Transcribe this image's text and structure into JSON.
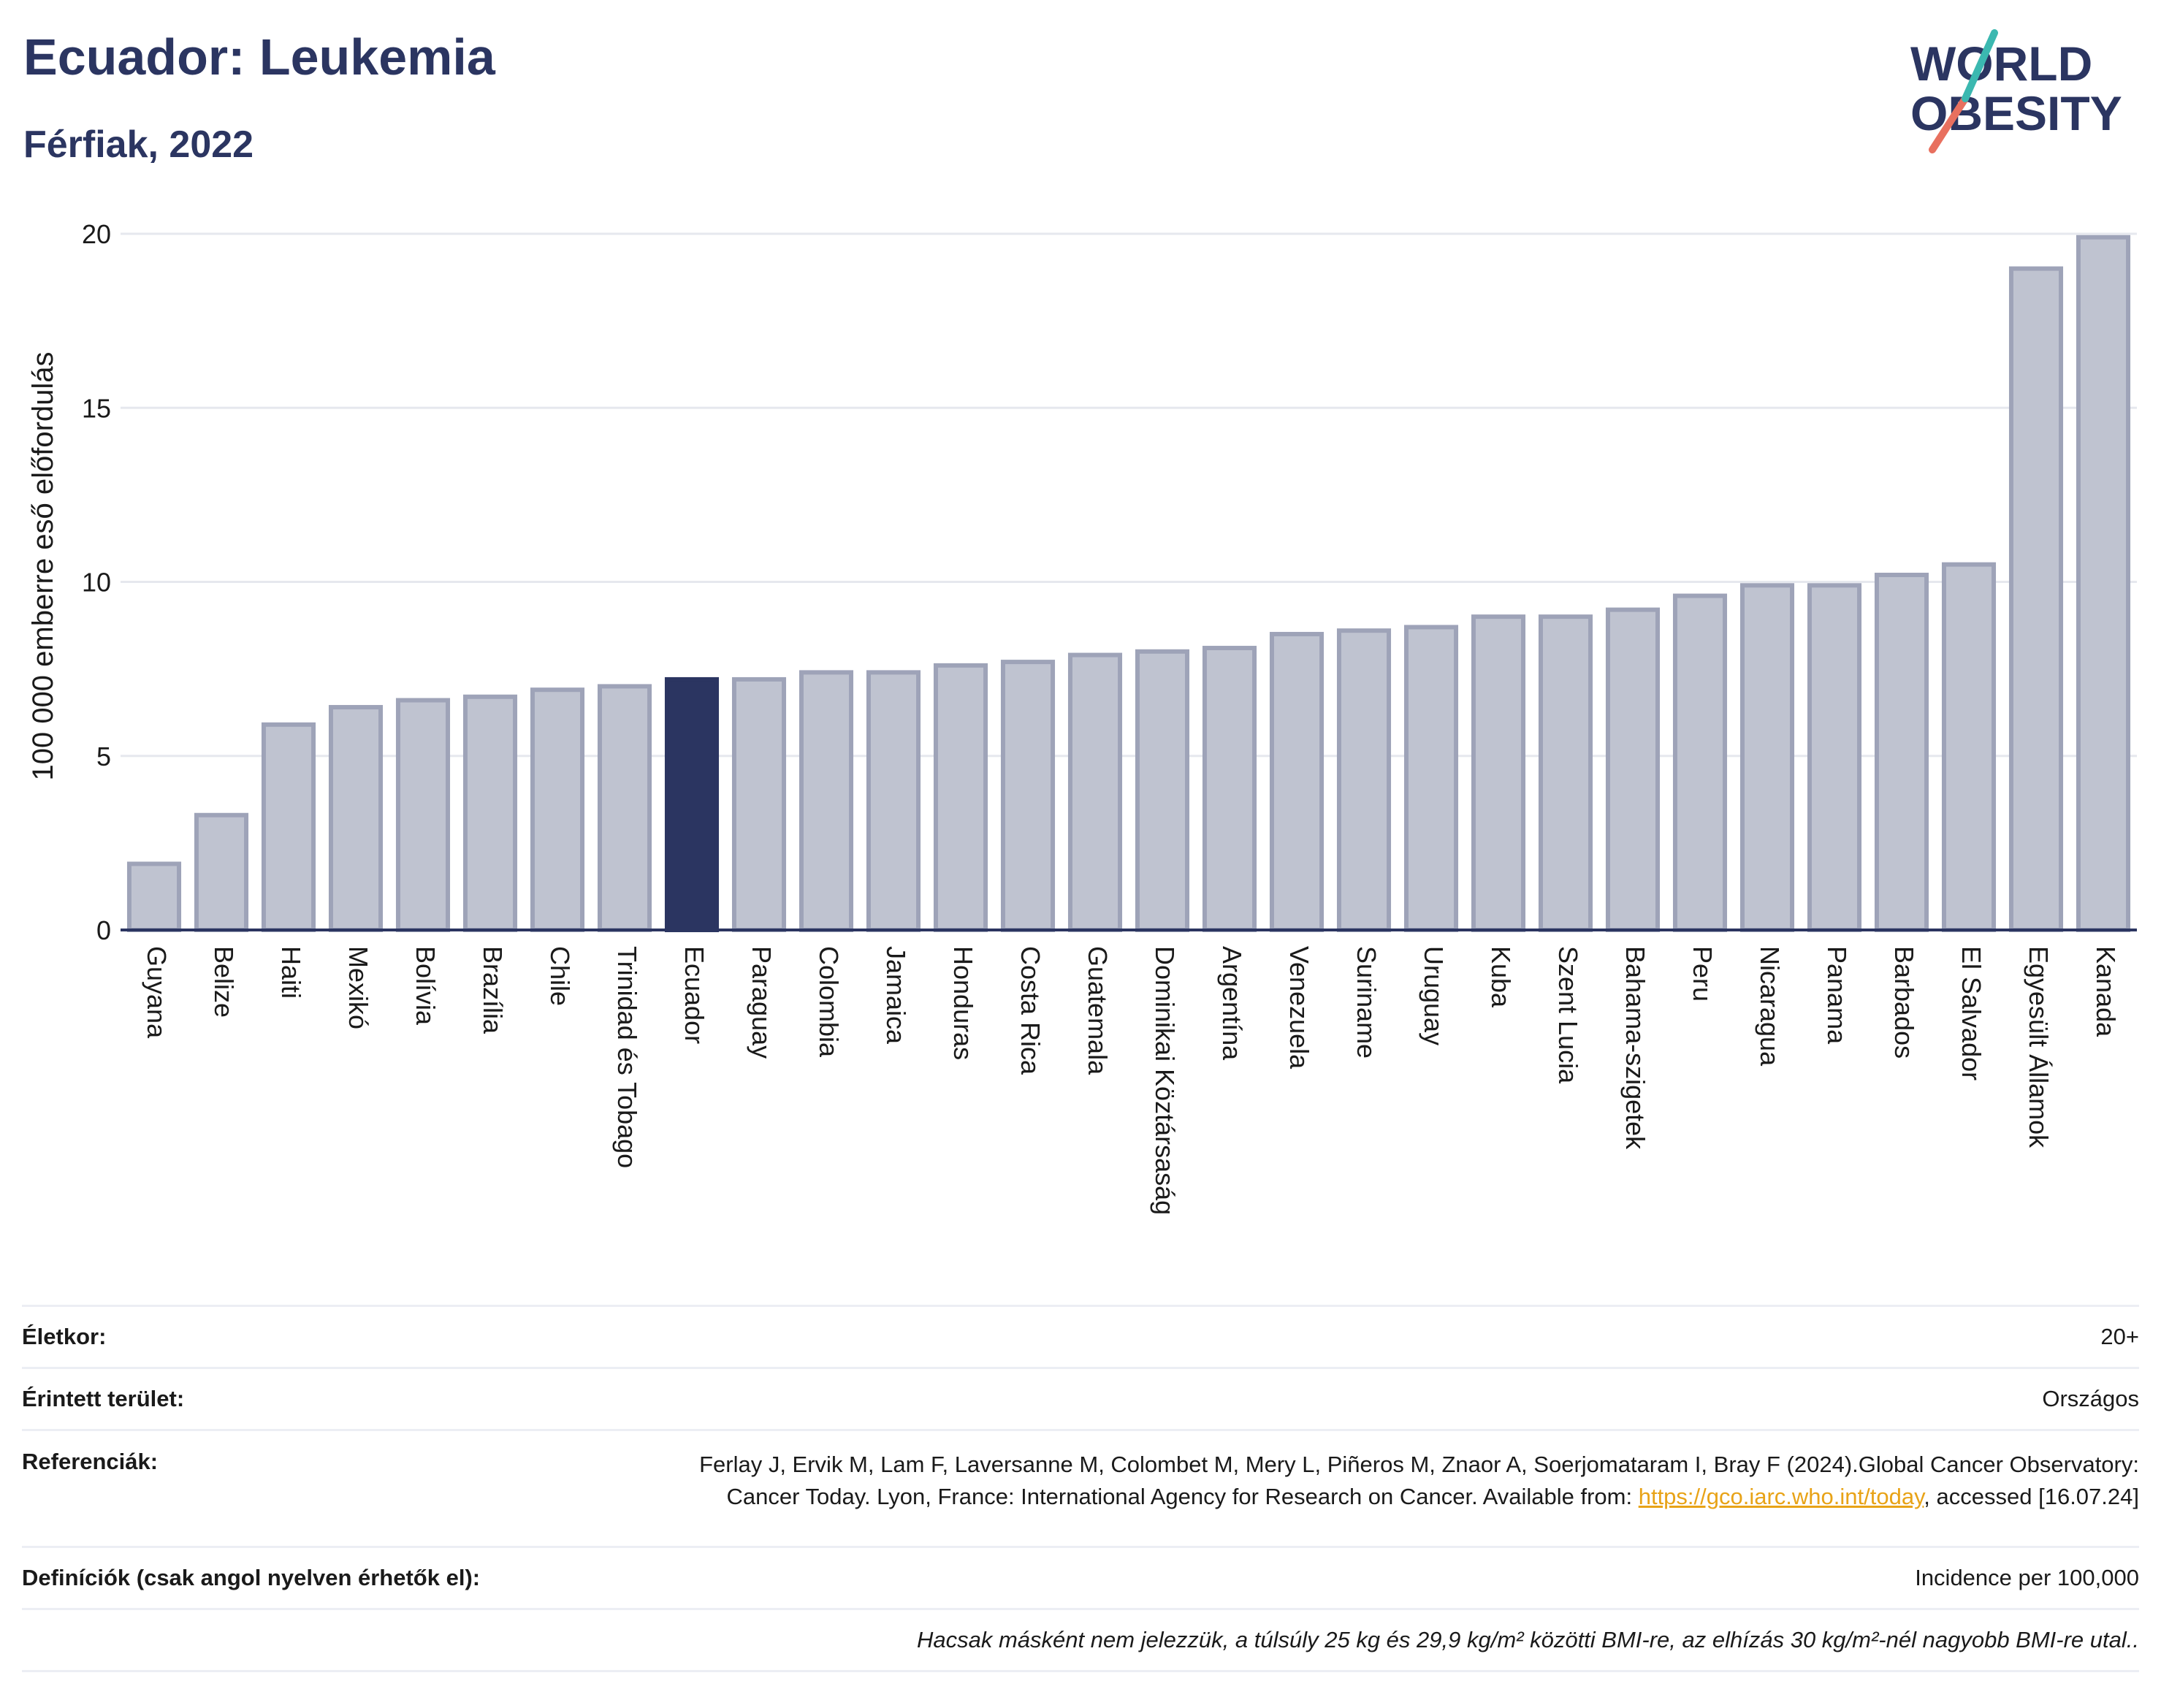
{
  "title": "Ecuador: Leukemia",
  "subtitle": "Férfiak, 2022",
  "logo": {
    "line1": "WORLD",
    "line2": "OBESITY"
  },
  "colors": {
    "bar": "#bfc3d0",
    "bar_stroke": "#9ea3b8",
    "highlight": "#2b3561",
    "grid": "#e6e8ee",
    "axis": "#2b3561"
  },
  "chart_data": {
    "type": "bar",
    "ylabel": "100 000 emberre eső előfordulás",
    "ylim": [
      0,
      20
    ],
    "yticks": [
      0,
      5,
      10,
      15,
      20
    ],
    "highlight": "Ecuador",
    "categories": [
      "Guyana",
      "Belize",
      "Haiti",
      "Mexikó",
      "Bolívia",
      "Brazília",
      "Chile",
      "Trinidad és Tobago",
      "Ecuador",
      "Paraguay",
      "Colombia",
      "Jamaica",
      "Honduras",
      "Costa Rica",
      "Guatemala",
      "Dominikai Köztársaság",
      "Argentína",
      "Venezuela",
      "Suriname",
      "Uruguay",
      "Kuba",
      "Szent Lucia",
      "Bahama-szigetek",
      "Peru",
      "Nicaragua",
      "Panama",
      "Barbados",
      "El Salvador",
      "Egyesült Államok",
      "Kanada"
    ],
    "values": [
      1.9,
      3.3,
      5.9,
      6.4,
      6.6,
      6.7,
      6.9,
      7.0,
      7.2,
      7.2,
      7.4,
      7.4,
      7.6,
      7.7,
      7.9,
      8.0,
      8.1,
      8.5,
      8.6,
      8.7,
      9.0,
      9.0,
      9.2,
      9.6,
      9.9,
      9.9,
      10.2,
      10.5,
      19.0,
      19.9
    ]
  },
  "info": {
    "age_label": "Életkor:",
    "age_value": "20+",
    "area_label": "Érintett terület:",
    "area_value": "Országos",
    "ref_label": "Referenciák:",
    "ref_text1": "Ferlay J, Ervik M, Lam F, Laversanne M, Colombet M, Mery L, Piñeros M, Znaor A, Soerjomataram I, Bray F (2024).Global Cancer Observatory: Cancer Today. Lyon, France: International Agency for Research on Cancer. Available from: ",
    "ref_link": "https://gco.iarc.who.int/today",
    "ref_text2": ", accessed [16.07.24]",
    "def_label": "Definíciók (csak angol nyelven érhetők el):",
    "def_value": "Incidence per 100,000",
    "note": "Hacsak másként nem jelezzük, a túlsúly 25 kg és 29,9 kg/m² közötti BMI-re, az elhízás 30 kg/m²-nél nagyobb BMI-re utal.."
  }
}
